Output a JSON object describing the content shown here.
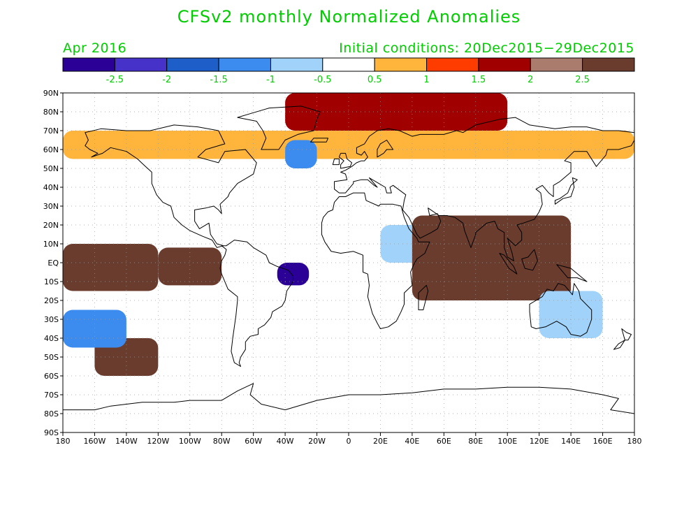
{
  "title": "CFSv2 monthly Normalized Anomalies",
  "forecast_month": "Apr 2016",
  "initial_conditions": "Initial conditions: 20Dec2015−29Dec2015",
  "colors": {
    "text": "#00cc00",
    "land_outline": "#000000",
    "grid": "#9a9a9a",
    "scale": [
      "#2a0096",
      "#4632c8",
      "#1e5ec8",
      "#3c8cf0",
      "#a0d2fa",
      "#ffffff",
      "#ffb43c",
      "#ff3c00",
      "#a00000",
      "#aa7c6e",
      "#6a3c2e"
    ]
  },
  "colorbar": {
    "tick_labels": [
      "-2.5",
      "-2",
      "-1.5",
      "-1",
      "-0.5",
      "0.5",
      "1",
      "1.5",
      "2",
      "2.5"
    ]
  },
  "axes": {
    "lon_labels": [
      "180",
      "160W",
      "140W",
      "120W",
      "100W",
      "80W",
      "60W",
      "40W",
      "20W",
      "0",
      "20E",
      "40E",
      "60E",
      "80E",
      "100E",
      "120E",
      "140E",
      "160E",
      "180"
    ],
    "lat_labels": [
      "90N",
      "80N",
      "70N",
      "60N",
      "50N",
      "40N",
      "30N",
      "20N",
      "10N",
      "EQ",
      "10S",
      "20S",
      "30S",
      "40S",
      "50S",
      "60S",
      "70S",
      "80S",
      "90S"
    ]
  },
  "chart_data": {
    "type": "heatmap",
    "title": "CFSv2 monthly Normalized Anomalies",
    "xlabel": "",
    "ylabel": "",
    "xlim": [
      -180,
      180
    ],
    "ylim": [
      -90,
      90
    ],
    "levels": [
      -2.5,
      -2,
      -1.5,
      -1,
      -0.5,
      0.5,
      1,
      1.5,
      2,
      2.5
    ],
    "regions": [
      {
        "lon": [
          -180,
          180
        ],
        "lat": [
          55,
          70
        ],
        "value": 0.7
      },
      {
        "lon": [
          -40,
          100
        ],
        "lat": [
          70,
          90
        ],
        "value": 1.7
      },
      {
        "lon": [
          -180,
          -120
        ],
        "lat": [
          -15,
          10
        ],
        "value": 2.7
      },
      {
        "lon": [
          -120,
          -80
        ],
        "lat": [
          -12,
          8
        ],
        "value": 2.7
      },
      {
        "lon": [
          -45,
          -25
        ],
        "lat": [
          -12,
          0
        ],
        "value": -2.6
      },
      {
        "lon": [
          20,
          50
        ],
        "lat": [
          0,
          20
        ],
        "value": -0.8
      },
      {
        "lon": [
          40,
          140
        ],
        "lat": [
          -20,
          25
        ],
        "value": 2.6
      },
      {
        "lon": [
          -160,
          -120
        ],
        "lat": [
          -60,
          -40
        ],
        "value": 2.6
      },
      {
        "lon": [
          -40,
          -20
        ],
        "lat": [
          50,
          65
        ],
        "value": -1.3
      },
      {
        "lon": [
          -180,
          -140
        ],
        "lat": [
          -45,
          -25
        ],
        "value": -1.5
      },
      {
        "lon": [
          120,
          160
        ],
        "lat": [
          -40,
          -15
        ],
        "value": -0.8
      },
      {
        "lon": [
          -180,
          180
        ],
        "lat": [
          -90,
          -70
        ],
        "value": 0
      }
    ]
  }
}
